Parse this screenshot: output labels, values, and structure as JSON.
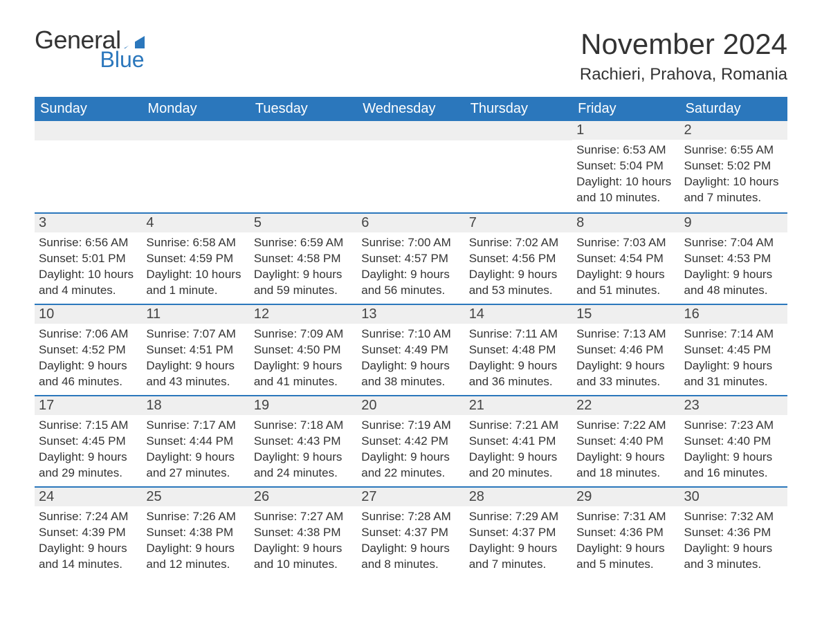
{
  "brand": {
    "word1": "General",
    "word2": "Blue",
    "accent_color": "#2b77bc",
    "text_color": "#333333"
  },
  "title": {
    "month_year": "November 2024",
    "location": "Rachieri, Prahova, Romania"
  },
  "colors": {
    "header_bg": "#2b77bc",
    "header_text": "#ffffff",
    "daynum_bg": "#efefef",
    "row_divider": "#2b77bc",
    "body_text": "#333333",
    "page_bg": "#ffffff"
  },
  "typography": {
    "month_title_fontsize": 42,
    "location_fontsize": 24,
    "weekday_fontsize": 20,
    "daynum_fontsize": 20,
    "body_fontsize": 17
  },
  "calendar": {
    "type": "table",
    "weekdays": [
      "Sunday",
      "Monday",
      "Tuesday",
      "Wednesday",
      "Thursday",
      "Friday",
      "Saturday"
    ],
    "weeks": [
      [
        null,
        null,
        null,
        null,
        null,
        {
          "day": "1",
          "sunrise": "Sunrise: 6:53 AM",
          "sunset": "Sunset: 5:04 PM",
          "daylight": "Daylight: 10 hours and 10 minutes."
        },
        {
          "day": "2",
          "sunrise": "Sunrise: 6:55 AM",
          "sunset": "Sunset: 5:02 PM",
          "daylight": "Daylight: 10 hours and 7 minutes."
        }
      ],
      [
        {
          "day": "3",
          "sunrise": "Sunrise: 6:56 AM",
          "sunset": "Sunset: 5:01 PM",
          "daylight": "Daylight: 10 hours and 4 minutes."
        },
        {
          "day": "4",
          "sunrise": "Sunrise: 6:58 AM",
          "sunset": "Sunset: 4:59 PM",
          "daylight": "Daylight: 10 hours and 1 minute."
        },
        {
          "day": "5",
          "sunrise": "Sunrise: 6:59 AM",
          "sunset": "Sunset: 4:58 PM",
          "daylight": "Daylight: 9 hours and 59 minutes."
        },
        {
          "day": "6",
          "sunrise": "Sunrise: 7:00 AM",
          "sunset": "Sunset: 4:57 PM",
          "daylight": "Daylight: 9 hours and 56 minutes."
        },
        {
          "day": "7",
          "sunrise": "Sunrise: 7:02 AM",
          "sunset": "Sunset: 4:56 PM",
          "daylight": "Daylight: 9 hours and 53 minutes."
        },
        {
          "day": "8",
          "sunrise": "Sunrise: 7:03 AM",
          "sunset": "Sunset: 4:54 PM",
          "daylight": "Daylight: 9 hours and 51 minutes."
        },
        {
          "day": "9",
          "sunrise": "Sunrise: 7:04 AM",
          "sunset": "Sunset: 4:53 PM",
          "daylight": "Daylight: 9 hours and 48 minutes."
        }
      ],
      [
        {
          "day": "10",
          "sunrise": "Sunrise: 7:06 AM",
          "sunset": "Sunset: 4:52 PM",
          "daylight": "Daylight: 9 hours and 46 minutes."
        },
        {
          "day": "11",
          "sunrise": "Sunrise: 7:07 AM",
          "sunset": "Sunset: 4:51 PM",
          "daylight": "Daylight: 9 hours and 43 minutes."
        },
        {
          "day": "12",
          "sunrise": "Sunrise: 7:09 AM",
          "sunset": "Sunset: 4:50 PM",
          "daylight": "Daylight: 9 hours and 41 minutes."
        },
        {
          "day": "13",
          "sunrise": "Sunrise: 7:10 AM",
          "sunset": "Sunset: 4:49 PM",
          "daylight": "Daylight: 9 hours and 38 minutes."
        },
        {
          "day": "14",
          "sunrise": "Sunrise: 7:11 AM",
          "sunset": "Sunset: 4:48 PM",
          "daylight": "Daylight: 9 hours and 36 minutes."
        },
        {
          "day": "15",
          "sunrise": "Sunrise: 7:13 AM",
          "sunset": "Sunset: 4:46 PM",
          "daylight": "Daylight: 9 hours and 33 minutes."
        },
        {
          "day": "16",
          "sunrise": "Sunrise: 7:14 AM",
          "sunset": "Sunset: 4:45 PM",
          "daylight": "Daylight: 9 hours and 31 minutes."
        }
      ],
      [
        {
          "day": "17",
          "sunrise": "Sunrise: 7:15 AM",
          "sunset": "Sunset: 4:45 PM",
          "daylight": "Daylight: 9 hours and 29 minutes."
        },
        {
          "day": "18",
          "sunrise": "Sunrise: 7:17 AM",
          "sunset": "Sunset: 4:44 PM",
          "daylight": "Daylight: 9 hours and 27 minutes."
        },
        {
          "day": "19",
          "sunrise": "Sunrise: 7:18 AM",
          "sunset": "Sunset: 4:43 PM",
          "daylight": "Daylight: 9 hours and 24 minutes."
        },
        {
          "day": "20",
          "sunrise": "Sunrise: 7:19 AM",
          "sunset": "Sunset: 4:42 PM",
          "daylight": "Daylight: 9 hours and 22 minutes."
        },
        {
          "day": "21",
          "sunrise": "Sunrise: 7:21 AM",
          "sunset": "Sunset: 4:41 PM",
          "daylight": "Daylight: 9 hours and 20 minutes."
        },
        {
          "day": "22",
          "sunrise": "Sunrise: 7:22 AM",
          "sunset": "Sunset: 4:40 PM",
          "daylight": "Daylight: 9 hours and 18 minutes."
        },
        {
          "day": "23",
          "sunrise": "Sunrise: 7:23 AM",
          "sunset": "Sunset: 4:40 PM",
          "daylight": "Daylight: 9 hours and 16 minutes."
        }
      ],
      [
        {
          "day": "24",
          "sunrise": "Sunrise: 7:24 AM",
          "sunset": "Sunset: 4:39 PM",
          "daylight": "Daylight: 9 hours and 14 minutes."
        },
        {
          "day": "25",
          "sunrise": "Sunrise: 7:26 AM",
          "sunset": "Sunset: 4:38 PM",
          "daylight": "Daylight: 9 hours and 12 minutes."
        },
        {
          "day": "26",
          "sunrise": "Sunrise: 7:27 AM",
          "sunset": "Sunset: 4:38 PM",
          "daylight": "Daylight: 9 hours and 10 minutes."
        },
        {
          "day": "27",
          "sunrise": "Sunrise: 7:28 AM",
          "sunset": "Sunset: 4:37 PM",
          "daylight": "Daylight: 9 hours and 8 minutes."
        },
        {
          "day": "28",
          "sunrise": "Sunrise: 7:29 AM",
          "sunset": "Sunset: 4:37 PM",
          "daylight": "Daylight: 9 hours and 7 minutes."
        },
        {
          "day": "29",
          "sunrise": "Sunrise: 7:31 AM",
          "sunset": "Sunset: 4:36 PM",
          "daylight": "Daylight: 9 hours and 5 minutes."
        },
        {
          "day": "30",
          "sunrise": "Sunrise: 7:32 AM",
          "sunset": "Sunset: 4:36 PM",
          "daylight": "Daylight: 9 hours and 3 minutes."
        }
      ]
    ]
  }
}
